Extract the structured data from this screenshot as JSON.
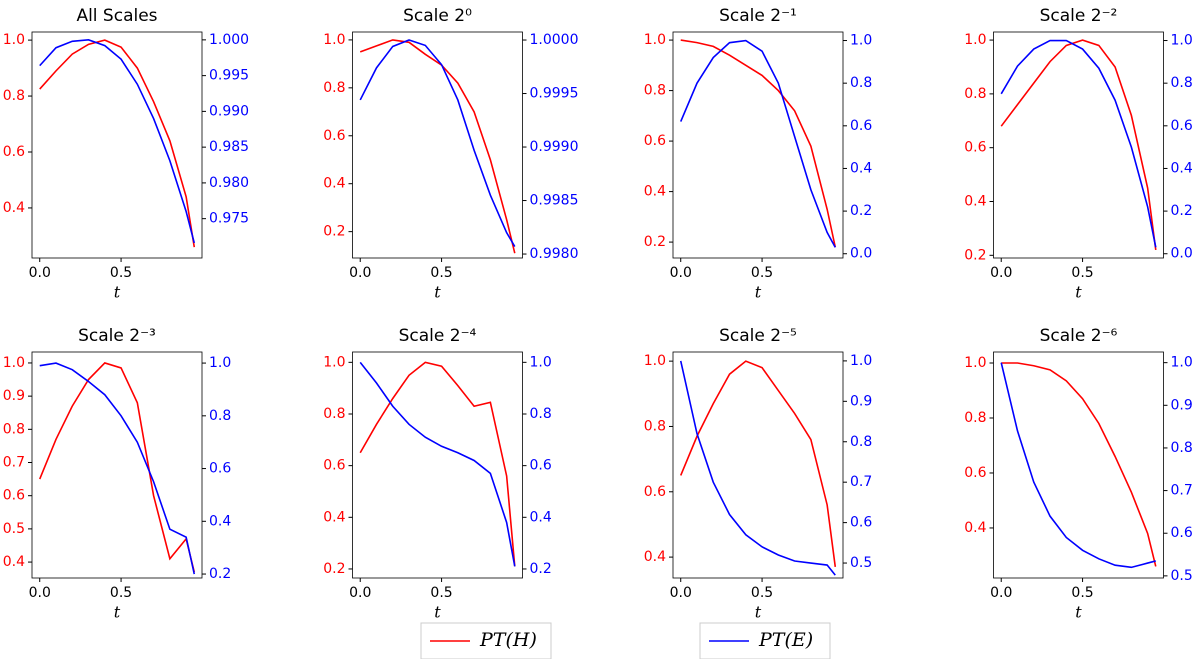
{
  "chart_data": [
    {
      "type": "line",
      "title": "All Scales",
      "x_label": "t",
      "x": [
        0,
        0.1,
        0.2,
        0.3,
        0.4,
        0.5,
        0.6,
        0.7,
        0.8,
        0.9,
        0.95
      ],
      "xlim": [
        -0.0475,
        0.9975
      ],
      "xticks": [
        {
          "value": 0,
          "label": "0.0"
        },
        {
          "value": 0.5,
          "label": "0.5"
        }
      ],
      "ylim": [
        0.221,
        1.029
      ],
      "yticks": [
        0.4,
        0.6,
        0.8,
        {
          "value": 1,
          "label": "1.0"
        }
      ],
      "y2lim": [
        0.9695,
        1.0011
      ],
      "y2ticks": [
        0.975,
        {
          "value": 0.98,
          "label": "0.980"
        },
        0.985,
        {
          "value": 0.99,
          "label": "0.990"
        },
        0.995,
        {
          "value": 1,
          "label": "1.000"
        }
      ],
      "series": [
        {
          "name": "PT(H)",
          "color": "#ff0000",
          "values": [
            0.825,
            0.89,
            0.95,
            0.985,
            1.0,
            0.975,
            0.9,
            0.78,
            0.64,
            0.44,
            0.26
          ]
        },
        {
          "name": "PT(E)",
          "color": "#0000ff",
          "axis": "y2",
          "values": [
            0.9964,
            0.9989,
            0.9998,
            1.0,
            0.9992,
            0.9973,
            0.9938,
            0.989,
            0.9831,
            0.976,
            0.9716
          ]
        }
      ]
    },
    {
      "type": "line",
      "title": "Scale 2⁰",
      "x_label": "t",
      "x": [
        0,
        0.1,
        0.2,
        0.3,
        0.4,
        0.5,
        0.6,
        0.7,
        0.8,
        0.9,
        0.95
      ],
      "xlim": [
        -0.0475,
        0.9975
      ],
      "xticks": [
        {
          "value": 0,
          "label": "0.0"
        },
        {
          "value": 0.5,
          "label": "0.5"
        }
      ],
      "ylim": [
        0.09,
        1.033
      ],
      "yticks": [
        0.2,
        0.4,
        0.6,
        0.8,
        {
          "value": 1,
          "label": "1.0"
        }
      ],
      "y2lim": [
        0.997963,
        1.000075
      ],
      "y2ticks": [
        {
          "value": 0.998,
          "label": "0.9980"
        },
        0.9985,
        {
          "value": 0.999,
          "label": "0.9990"
        },
        0.9995,
        {
          "value": 1,
          "label": "1.0000"
        }
      ],
      "series": [
        {
          "color": "#ff0000",
          "values": [
            0.95,
            0.975,
            1.0,
            0.99,
            0.94,
            0.895,
            0.82,
            0.7,
            0.5,
            0.25,
            0.11
          ]
        },
        {
          "color": "#0000ff",
          "axis": "y2",
          "values": [
            0.99944,
            0.99974,
            0.99994,
            1.0,
            0.99995,
            0.99977,
            0.99944,
            0.99897,
            0.99855,
            0.9982,
            0.99807
          ]
        }
      ]
    },
    {
      "type": "line",
      "title": "Scale 2⁻¹",
      "x_label": "t",
      "x": [
        0,
        0.1,
        0.2,
        0.3,
        0.4,
        0.5,
        0.6,
        0.7,
        0.8,
        0.9,
        0.95
      ],
      "xlim": [
        -0.0475,
        0.9975
      ],
      "xticks": [
        {
          "value": 0,
          "label": "0.0"
        },
        {
          "value": 0.5,
          "label": "0.5"
        }
      ],
      "ylim": [
        0.137,
        1.032
      ],
      "yticks": [
        0.2,
        0.4,
        0.6,
        0.8,
        {
          "value": 1,
          "label": "1.0"
        }
      ],
      "y2lim": [
        -0.02,
        1.04
      ],
      "y2ticks": [
        {
          "value": 0,
          "label": "0.0"
        },
        0.2,
        0.4,
        0.6,
        0.8,
        {
          "value": 1,
          "label": "1.0"
        }
      ],
      "series": [
        {
          "color": "#ff0000",
          "values": [
            1.0,
            0.99,
            0.975,
            0.94,
            0.9,
            0.86,
            0.8,
            0.72,
            0.58,
            0.33,
            0.18
          ]
        },
        {
          "color": "#0000ff",
          "axis": "y2",
          "values": [
            0.62,
            0.8,
            0.92,
            0.99,
            1.0,
            0.95,
            0.8,
            0.55,
            0.3,
            0.1,
            0.03
          ]
        }
      ]
    },
    {
      "type": "line",
      "title": "Scale 2⁻²",
      "x_label": "t",
      "x": [
        0,
        0.1,
        0.2,
        0.3,
        0.4,
        0.5,
        0.6,
        0.7,
        0.8,
        0.9,
        0.95
      ],
      "xlim": [
        -0.0475,
        0.9975
      ],
      "xticks": [
        {
          "value": 0,
          "label": "0.0"
        },
        {
          "value": 0.5,
          "label": "0.5"
        }
      ],
      "ylim": [
        0.19,
        1.03
      ],
      "yticks": [
        0.2,
        0.4,
        0.6,
        0.8,
        {
          "value": 1,
          "label": "1.0"
        }
      ],
      "y2lim": [
        -0.02,
        1.04
      ],
      "y2ticks": [
        {
          "value": 0,
          "label": "0.0"
        },
        0.2,
        0.4,
        0.6,
        0.8,
        {
          "value": 1,
          "label": "1.0"
        }
      ],
      "series": [
        {
          "color": "#ff0000",
          "values": [
            0.68,
            0.76,
            0.84,
            0.92,
            0.98,
            1.0,
            0.98,
            0.9,
            0.72,
            0.45,
            0.22
          ]
        },
        {
          "color": "#0000ff",
          "axis": "y2",
          "values": [
            0.75,
            0.88,
            0.96,
            1.0,
            1.0,
            0.96,
            0.87,
            0.72,
            0.5,
            0.22,
            0.03
          ]
        }
      ]
    },
    {
      "type": "line",
      "title": "Scale 2⁻³",
      "x_label": "t",
      "x": [
        0,
        0.1,
        0.2,
        0.3,
        0.4,
        0.5,
        0.6,
        0.7,
        0.8,
        0.9,
        0.95
      ],
      "xlim": [
        -0.0475,
        0.9975
      ],
      "xticks": [
        {
          "value": 0,
          "label": "0.0"
        },
        {
          "value": 0.5,
          "label": "0.5"
        }
      ],
      "ylim": [
        0.352,
        1.033
      ],
      "yticks": [
        0.4,
        0.5,
        0.6,
        0.7,
        0.8,
        0.9,
        {
          "value": 1,
          "label": "1.0"
        }
      ],
      "y2lim": [
        0.185,
        1.042
      ],
      "y2ticks": [
        0.2,
        0.4,
        0.6,
        0.8,
        {
          "value": 1,
          "label": "1.0"
        }
      ],
      "series": [
        {
          "color": "#ff0000",
          "values": [
            0.65,
            0.77,
            0.87,
            0.95,
            1.0,
            0.985,
            0.88,
            0.6,
            0.41,
            0.47,
            0.37
          ]
        },
        {
          "color": "#0000ff",
          "axis": "y2",
          "values": [
            0.99,
            1.0,
            0.975,
            0.93,
            0.88,
            0.8,
            0.7,
            0.55,
            0.37,
            0.34,
            0.2
          ]
        }
      ]
    },
    {
      "type": "line",
      "title": "Scale 2⁻⁴",
      "x_label": "t",
      "x": [
        0,
        0.1,
        0.2,
        0.3,
        0.4,
        0.5,
        0.6,
        0.7,
        0.8,
        0.9,
        0.95
      ],
      "xlim": [
        -0.0475,
        0.9975
      ],
      "xticks": [
        {
          "value": 0,
          "label": "0.0"
        },
        {
          "value": 0.5,
          "label": "0.5"
        }
      ],
      "ylim": [
        0.165,
        1.04
      ],
      "yticks": [
        0.2,
        0.4,
        0.6,
        0.8,
        {
          "value": 1,
          "label": "1.0"
        }
      ],
      "y2lim": [
        0.165,
        1.04
      ],
      "y2ticks": [
        0.2,
        0.4,
        0.6,
        0.8,
        {
          "value": 1,
          "label": "1.0"
        }
      ],
      "series": [
        {
          "color": "#ff0000",
          "values": [
            0.65,
            0.76,
            0.86,
            0.95,
            1.0,
            0.985,
            0.91,
            0.83,
            0.845,
            0.56,
            0.21
          ]
        },
        {
          "color": "#0000ff",
          "axis": "y2",
          "values": [
            1.0,
            0.92,
            0.83,
            0.76,
            0.71,
            0.675,
            0.65,
            0.62,
            0.57,
            0.38,
            0.21
          ]
        }
      ]
    },
    {
      "type": "line",
      "title": "Scale 2⁻⁵",
      "x_label": "t",
      "x": [
        0,
        0.1,
        0.2,
        0.3,
        0.4,
        0.5,
        0.6,
        0.7,
        0.8,
        0.9,
        0.95
      ],
      "xlim": [
        -0.0475,
        0.9975
      ],
      "xticks": [
        {
          "value": 0,
          "label": "0.0"
        },
        {
          "value": 0.5,
          "label": "0.5"
        }
      ],
      "ylim": [
        0.336,
        1.028
      ],
      "yticks": [
        0.4,
        0.6,
        0.8,
        {
          "value": 1,
          "label": "1.0"
        }
      ],
      "y2lim": [
        0.463,
        1.022
      ],
      "y2ticks": [
        0.5,
        0.6,
        0.7,
        0.8,
        0.9,
        {
          "value": 1,
          "label": "1.0"
        }
      ],
      "series": [
        {
          "color": "#ff0000",
          "values": [
            0.65,
            0.77,
            0.87,
            0.96,
            1.0,
            0.98,
            0.91,
            0.84,
            0.76,
            0.56,
            0.37
          ]
        },
        {
          "color": "#0000ff",
          "axis": "y2",
          "values": [
            1.0,
            0.82,
            0.7,
            0.62,
            0.57,
            0.54,
            0.52,
            0.505,
            0.5,
            0.495,
            0.47
          ]
        }
      ]
    },
    {
      "type": "line",
      "title": "Scale 2⁻⁶",
      "x_label": "t",
      "x": [
        0,
        0.1,
        0.2,
        0.3,
        0.4,
        0.5,
        0.6,
        0.7,
        0.8,
        0.9,
        0.95
      ],
      "xlim": [
        -0.0475,
        0.9975
      ],
      "xticks": [
        {
          "value": 0,
          "label": "0.0"
        },
        {
          "value": 0.5,
          "label": "0.5"
        }
      ],
      "ylim": [
        0.218,
        1.04
      ],
      "yticks": [
        0.4,
        0.6,
        0.8,
        {
          "value": 1,
          "label": "1.0"
        }
      ],
      "y2lim": [
        0.495,
        1.025
      ],
      "y2ticks": [
        0.5,
        0.6,
        0.7,
        0.8,
        0.9,
        {
          "value": 1,
          "label": "1.0"
        }
      ],
      "series": [
        {
          "color": "#ff0000",
          "values": [
            1.0,
            1.0,
            0.99,
            0.975,
            0.935,
            0.87,
            0.78,
            0.66,
            0.53,
            0.38,
            0.26
          ]
        },
        {
          "color": "#0000ff",
          "axis": "y2",
          "values": [
            1.0,
            0.84,
            0.72,
            0.64,
            0.59,
            0.56,
            0.54,
            0.525,
            0.52,
            0.53,
            0.535
          ]
        }
      ]
    }
  ]
}
